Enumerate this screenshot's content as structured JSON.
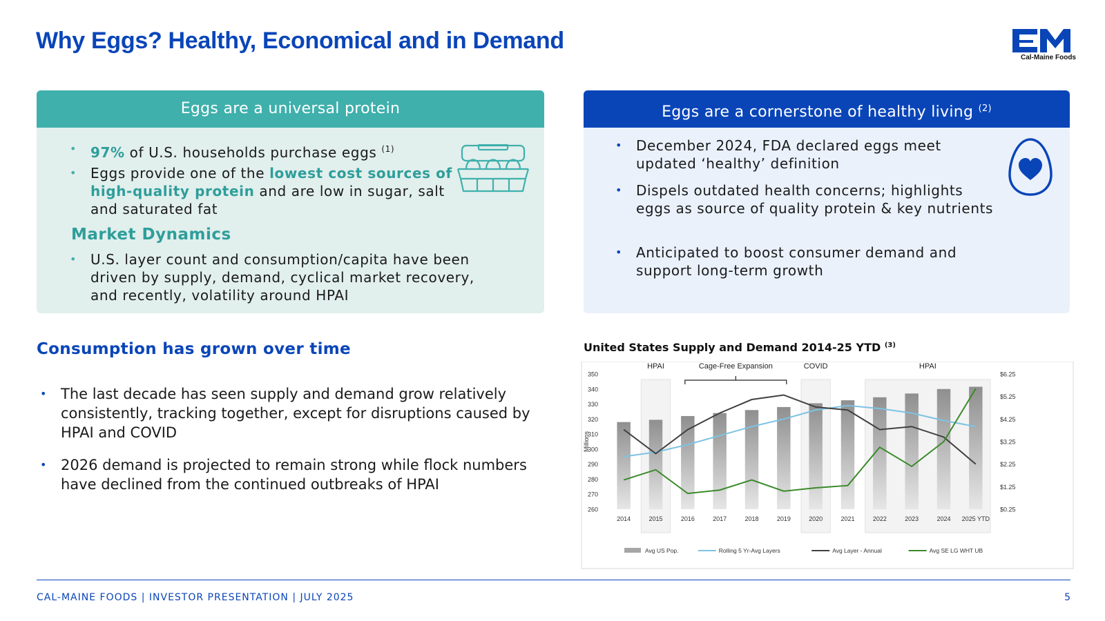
{
  "title": "Why Eggs? Healthy, Economical and in Demand",
  "logo": {
    "mark": "CM",
    "text": "Cal-Maine Foods",
    "color": "#0a45b8"
  },
  "left_panel": {
    "header": "Eggs are a universal protein",
    "bullet1": {
      "highlight": "97%",
      "text": " of U.S. households purchase eggs ",
      "sup": "(1)"
    },
    "bullet2": {
      "pre": "Eggs provide one of the ",
      "highlight": "lowest cost sources of high-quality protein",
      "post": " and are low in sugar, salt and saturated fat"
    },
    "market_title": "Market Dynamics",
    "bullet3": "U.S. layer count and consumption/capita have been driven by supply, demand, cyclical market recovery, and recently, volatility around HPAI",
    "icon": "egg-carton-icon"
  },
  "right_panel": {
    "header": "Eggs are a cornerstone of healthy living",
    "header_sup": "(2)",
    "bullets": [
      "December 2024, FDA declared eggs meet updated ‘healthy’ definition",
      "Dispels outdated health concerns; highlights eggs as source of quality protein & key nutrients",
      "Anticipated to boost consumer demand and support long-term growth"
    ],
    "icon": "egg-heart-icon"
  },
  "lower_left": {
    "title": "Consumption has grown over time",
    "bullets": [
      "The last decade has seen supply and demand grow relatively consistently, tracking together, except for disruptions caused by HPAI and COVID",
      "2026 demand is projected to remain strong while flock numbers have declined from the continued outbreaks of HPAI"
    ]
  },
  "chart_data": {
    "type": "bar",
    "title": "United States Supply and Demand 2014-25 YTD",
    "title_sup": "(3)",
    "categories": [
      "2014",
      "2015",
      "2016",
      "2017",
      "2018",
      "2019",
      "2020",
      "2021",
      "2022",
      "2023",
      "2024",
      "2025 YTD"
    ],
    "ylabel": "Millions",
    "ylim": [
      260,
      350
    ],
    "yticks": [
      260,
      270,
      280,
      290,
      300,
      310,
      320,
      330,
      340,
      350
    ],
    "y2lim": [
      0.25,
      6.25
    ],
    "y2ticks": [
      "$0.25",
      "$1.25",
      "$2.25",
      "$3.25",
      "$4.25",
      "$5.25",
      "$6.25"
    ],
    "y2tick_values": [
      0.25,
      1.25,
      2.25,
      3.25,
      4.25,
      5.25,
      6.25
    ],
    "annotations": [
      {
        "label": "HPAI",
        "from": "2015",
        "to": "2015",
        "shaded": true
      },
      {
        "label": "Cage-Free Expansion",
        "from": "2016",
        "to": "2019",
        "bracket": true
      },
      {
        "label": "COVID",
        "from": "2020",
        "to": "2020",
        "shaded": true
      },
      {
        "label": "HPAI",
        "from": "2022",
        "to": "2025 YTD",
        "shaded": true
      }
    ],
    "series": [
      {
        "name": "Avg US Pop.",
        "kind": "bar",
        "axis": "left",
        "color": "#a6a6a6",
        "values": [
          318,
          319.5,
          322,
          324,
          326,
          328,
          330.5,
          332.5,
          334.5,
          337,
          340,
          341.5
        ]
      },
      {
        "name": "Rolling 5 Yr-Avg Layers",
        "kind": "line",
        "axis": "left",
        "color": "#7cc3e3",
        "values": [
          295,
          298,
          303,
          309,
          315,
          320,
          326,
          329,
          327,
          324,
          319,
          315
        ]
      },
      {
        "name": "Avg Layer - Annual",
        "kind": "line",
        "axis": "left",
        "color": "#404040",
        "values": [
          313,
          297,
          313,
          324,
          333,
          336,
          328,
          326,
          313,
          315,
          308,
          290
        ]
      },
      {
        "name": "Avg SE LG WHT UB",
        "kind": "line",
        "axis": "right",
        "color": "#3a8a2a",
        "values": [
          1.55,
          2.0,
          0.95,
          1.1,
          1.55,
          1.05,
          1.2,
          1.3,
          3.0,
          2.15,
          3.25,
          5.6
        ]
      }
    ]
  },
  "footer": {
    "text": "CAL-MAINE FOODS | INVESTOR PRESENTATION | JULY 2025",
    "page": "5"
  }
}
